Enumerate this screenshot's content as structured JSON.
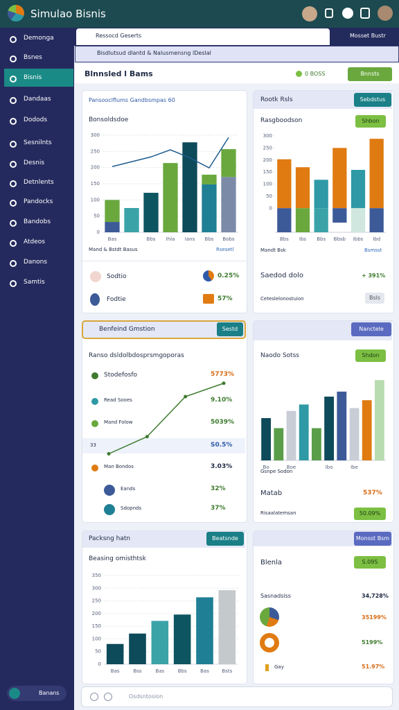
{
  "header": {
    "title": "Simulao Bisnis"
  },
  "sidebar": {
    "items": [
      "Demonga",
      "Bsnes",
      "Bisnis",
      "Dandaas",
      "Dodods",
      "Sesnilnts",
      "Desnis",
      "Detnlents",
      "Pandocks",
      "Bandobs",
      "Atdeos",
      "Danons",
      "Samtis"
    ],
    "user": "Banans"
  },
  "tabs": [
    "Ressocd Geserts",
    "Mosset Bustr"
  ],
  "banner": "Bisdlutsud dlantd & Nalusmensng lDeslal",
  "toolbar": {
    "title": "Blnnsled l Bams",
    "badge": "0 BOSS",
    "button": "Bnnsts"
  },
  "panels": {
    "overview": {
      "title": "Pansooclflums Gandbsmpas 60",
      "subtitle": "Bonsoldsdoe",
      "chart": {
        "type": "bar",
        "ylim": [
          0,
          300
        ],
        "yticks": [
          0,
          50,
          100,
          150,
          200,
          250,
          300
        ],
        "grid": true,
        "categories": [
          "Bas",
          null,
          "Bbs",
          "Ihla",
          "Ians",
          "Bbs",
          "Bobs"
        ],
        "series": [
          {
            "values": [
              32,
              75,
              122,
              214,
              278,
              148,
              171
            ],
            "colors": [
              "#3d5a98",
              "#3aa3a8",
              "#0d5560",
              "#6aa83e",
              "#0d4a5a",
              "#1f7f95",
              "#7b8aa6"
            ]
          },
          {
            "values": [
              68,
              null,
              null,
              null,
              null,
              30,
              86
            ],
            "color": "#6aa83e"
          }
        ],
        "line": {
          "values": [
            203,
            218,
            233,
            255,
            230,
            199,
            293
          ],
          "color": "#1d5a8c"
        }
      },
      "legend": "Mand & Bstdt Basus",
      "link": "Rsesetl",
      "rows": [
        {
          "label": "Sodtio",
          "value": "0.25%"
        },
        {
          "label": "Fodtie",
          "value": "57%"
        }
      ]
    },
    "ratios": {
      "title": "Rootk Rsls",
      "button": "Sebdstus",
      "subtitle": "Rasgboodson",
      "pill": "Shbon",
      "chart": {
        "type": "bar",
        "ylim": [
          -100,
          300
        ],
        "yticks": [
          0,
          50,
          100,
          150,
          200,
          250,
          300
        ],
        "grid": false,
        "categories": [
          "Bbs",
          "Ibs",
          "Bbs",
          "Bbsb",
          "Ibbs",
          "Ibd"
        ],
        "series": [
          {
            "values": [
              203,
              170,
              118,
              250,
              159,
              288
            ],
            "colors": [
              "#e07b12",
              "#e07b12",
              "#2f9aa5",
              "#e07b12",
              "#2f9aa5",
              "#e07b12"
            ]
          },
          {
            "values": [
              -100,
              -100,
              -100,
              -60,
              -100,
              -100
            ],
            "colors": [
              "#3d5a98",
              "#6aa83e",
              "#3aa3a8",
              "#3d5a98",
              "#cfe7de",
              "#3d5a98"
            ]
          }
        ]
      },
      "legend": "Mandt Bsk",
      "link": "Bsmsst",
      "stat_label": "Saedod dolo",
      "stat_value": "+ 391%",
      "footer": "Ceteslelonostuion",
      "footer_button": "Bsls"
    },
    "growth": {
      "title": "Benfeind Gmstion",
      "button": "Sestd",
      "subtitle": "Ranso dsldolbdosprsmgoporas",
      "chart": {
        "type": "line",
        "ylim": [
          0,
          80
        ],
        "values": [
          4,
          22,
          64,
          78
        ],
        "color": "#3d7a2e"
      },
      "rows": [
        {
          "label": "Stodefosfo",
          "value": "5773%"
        },
        {
          "label": "Read Sooes",
          "value": "9.10%"
        },
        {
          "label": "Mand Folow",
          "value": "5039%"
        },
        {
          "label": "33",
          "value": "S0.5%"
        },
        {
          "label": "Man Bondos",
          "value": "3.03%"
        },
        {
          "label": "Eands",
          "value": "32%"
        },
        {
          "label": "Sdopnds",
          "value": "37%"
        }
      ]
    },
    "sales": {
      "button": "Nanctele",
      "title": "Naodo Sotss",
      "pill": "Shdon",
      "chart": {
        "type": "bar",
        "ylim": [
          0,
          120
        ],
        "grid": false,
        "categories": [
          "Bo",
          null,
          "Boe",
          null,
          null,
          "Ibo",
          null,
          "Ibe",
          null,
          null
        ],
        "series": [
          {
            "values": [
              59,
              45,
              69,
              78,
              45,
              89,
              96,
              73,
              84,
              112
            ],
            "colors": [
              "#0d4a5a",
              "#5a9e4a",
              "#c9ced6",
              "#2f9aa5",
              "#5a9e4a",
              "#0d4a5a",
              "#3d5a98",
              "#c9ced6",
              "#e07b12",
              "#b9dbb0"
            ]
          }
        ]
      },
      "caption": "Gsnpe Sodon",
      "stat_label": "Matab",
      "stat_value": "537%",
      "footer": "Risaalatemsan",
      "footer_pill": "50.09%"
    },
    "tracking": {
      "title": "Packsng hatn",
      "button": "Beatsnde",
      "subtitle": "Beasing omisthtsk",
      "chart": {
        "type": "bar",
        "ylim": [
          0,
          350
        ],
        "yticks": [
          0,
          50,
          100,
          150,
          200,
          250,
          300,
          350
        ],
        "grid": true,
        "categories": [
          "Bas",
          "Bss",
          "Bas",
          "Bbs",
          "Bas",
          "Bsts"
        ],
        "series": [
          {
            "values": [
              80,
              121,
              171,
              196,
              264,
              292
            ],
            "colors": [
              "#0d4a5a",
              "#0d4a5a",
              "#3aa3a8",
              "#0d5560",
              "#1f7f95",
              "#c4c9cc"
            ]
          }
        ]
      }
    },
    "summary": {
      "button": "Monsst Bsm",
      "title": "Blenla",
      "pill": "S.09S",
      "rows": [
        {
          "label": "Sasnadsiss",
          "value": "34,728%"
        },
        {
          "label": "Gay",
          "value": "51.97%"
        }
      ],
      "donut_values": [
        "35199%",
        "5199%"
      ]
    }
  },
  "search": {
    "placeholder": "Osdsntosion"
  }
}
